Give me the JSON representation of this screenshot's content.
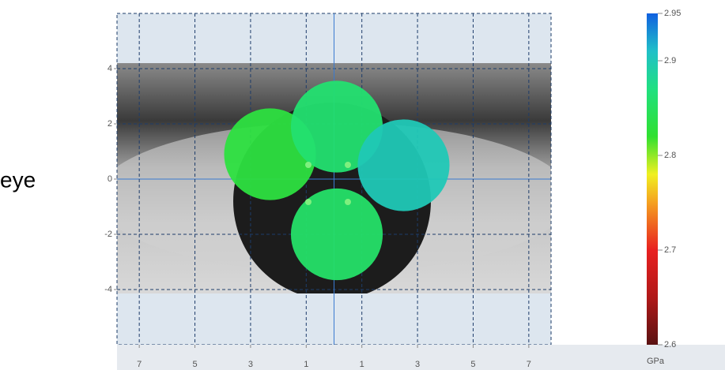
{
  "side_text": "eye",
  "chart_data": {
    "type": "scatter",
    "x": [
      -2.3,
      0.1,
      2.5,
      0.1
    ],
    "y": [
      0.9,
      1.9,
      0.5,
      -2.0
    ],
    "values": [
      2.83,
      2.86,
      2.9,
      2.855
    ],
    "xlim": [
      -7.8,
      7.8
    ],
    "ylim": [
      -6,
      6
    ],
    "xticks": [
      {
        "value": -7,
        "label": "7"
      },
      {
        "value": -5,
        "label": "5"
      },
      {
        "value": -3,
        "label": "3"
      },
      {
        "value": -1,
        "label": "1"
      },
      {
        "value": 1,
        "label": "1"
      },
      {
        "value": 3,
        "label": "3"
      },
      {
        "value": 5,
        "label": "5"
      },
      {
        "value": 7,
        "label": "7"
      }
    ],
    "yticks": [
      4,
      2,
      0,
      -2,
      -4
    ],
    "grid": true,
    "colorbar": {
      "label": "GPa",
      "clim": [
        2.6,
        2.95
      ],
      "ticks": [
        2.95,
        2.9,
        2.8,
        2.7,
        2.6
      ],
      "colormap": [
        [
          2.6,
          "#5a1212"
        ],
        [
          2.65,
          "#b01818"
        ],
        [
          2.7,
          "#e82020"
        ],
        [
          2.75,
          "#f5a020"
        ],
        [
          2.78,
          "#f0f020"
        ],
        [
          2.82,
          "#30e030"
        ],
        [
          2.87,
          "#20e080"
        ],
        [
          2.91,
          "#20c0c8"
        ],
        [
          2.95,
          "#1060e0"
        ]
      ]
    }
  }
}
